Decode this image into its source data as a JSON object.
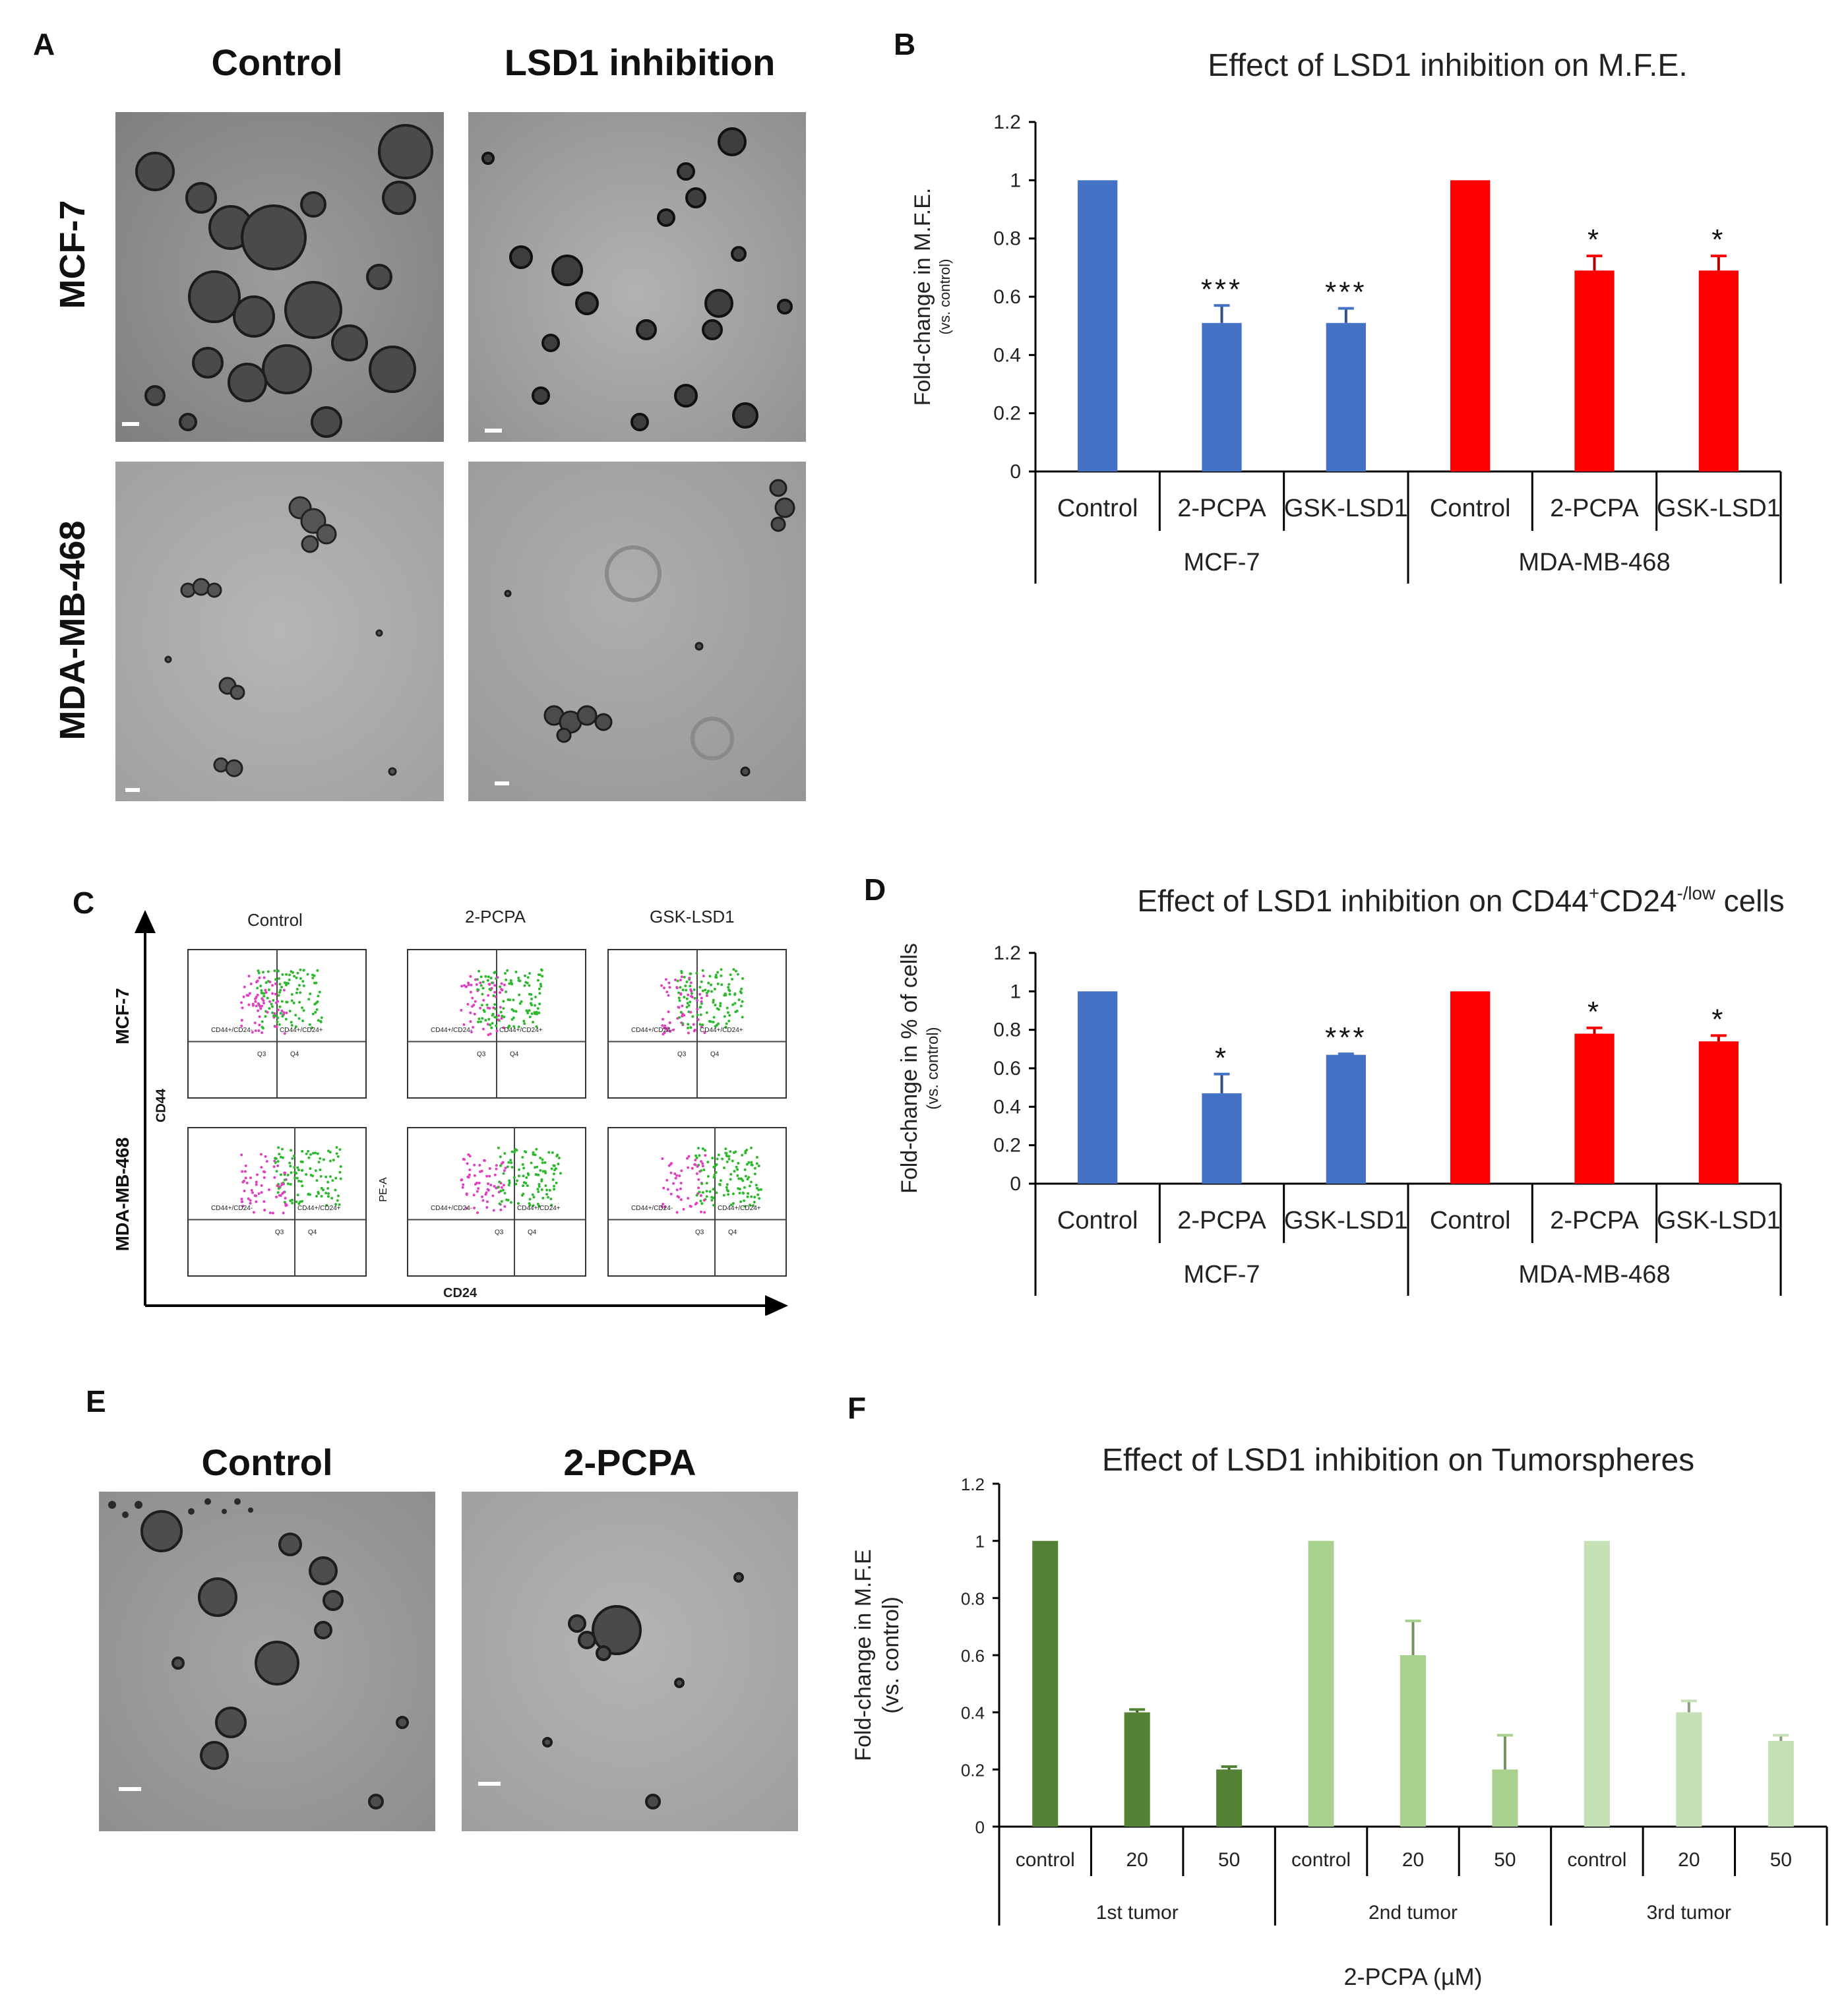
{
  "panelA": {
    "label": "A",
    "col_titles": [
      "Control",
      "LSD1 inhibition"
    ],
    "row_titles": [
      "MCF-7",
      "MDA-MB-468"
    ]
  },
  "panelC": {
    "label": "C",
    "col_titles": [
      "Control",
      "2-PCPA",
      "GSK-LSD1"
    ],
    "row_titles": [
      "MCF-7",
      "MDA-MB-468"
    ],
    "y_axis": "CD44",
    "x_axis": "CD24",
    "inner_ylabel": "PE-A",
    "gate_labels": {
      "q1": "CD44+/CD24-",
      "q2": "CD44+/CD24+",
      "q3": "Q3",
      "q4": "Q4"
    }
  },
  "panelE": {
    "label": "E",
    "col_titles": [
      "Control",
      "2-PCPA"
    ]
  },
  "colors": {
    "mcf7": "#4472C4",
    "mda": "#FF0000",
    "tumor1": "#548235",
    "tumor2": "#A9D18E",
    "tumor3": "#C5E0B4"
  },
  "chart_data": [
    {
      "id": "B",
      "label": "B",
      "type": "bar",
      "title": "Effect of LSD1 inhibition on M.F.E.",
      "ylabel": "Fold-change in M.F.E.",
      "ylabel_sub": "(vs. control)",
      "ylim": [
        0,
        1.2
      ],
      "yticks": [
        "0",
        "0.2",
        "0.4",
        "0.6",
        "0.8",
        "1",
        "1.2"
      ],
      "categories": [
        "Control",
        "2-PCPA",
        "GSK-LSD1",
        "Control",
        "2-PCPA",
        "GSK-LSD1"
      ],
      "groups": [
        "MCF-7",
        "MDA-MB-468"
      ],
      "values": [
        1.0,
        0.51,
        0.51,
        1.0,
        0.69,
        0.69
      ],
      "errors": [
        0,
        0.06,
        0.05,
        0,
        0.05,
        0.05
      ],
      "significance": [
        "",
        "***",
        "***",
        "",
        "*",
        "*"
      ]
    },
    {
      "id": "D",
      "label": "D",
      "type": "bar",
      "title": "Effect of LSD1 inhibition on CD44",
      "title_sup1": "+",
      "title_mid": "CD24",
      "title_sup2": "-/low",
      "title_end": " cells",
      "ylabel": "Fold-change in % of cells",
      "ylabel_sub": "(vs. control)",
      "ylim": [
        0,
        1.2
      ],
      "yticks": [
        "0",
        "0.2",
        "0.4",
        "0.6",
        "0.8",
        "1",
        "1.2"
      ],
      "categories": [
        "Control",
        "2-PCPA",
        "GSK-LSD1",
        "Control",
        "2-PCPA",
        "GSK-LSD1"
      ],
      "groups": [
        "MCF-7",
        "MDA-MB-468"
      ],
      "values": [
        1.0,
        0.47,
        0.67,
        1.0,
        0.78,
        0.74
      ],
      "errors": [
        0,
        0.1,
        0.005,
        0,
        0.03,
        0.03
      ],
      "significance": [
        "",
        "*",
        "***",
        "",
        "*",
        "*"
      ]
    },
    {
      "id": "F",
      "label": "F",
      "type": "bar",
      "title": "Effect of LSD1 inhibition on Tumorspheres",
      "ylabel": "Fold-change in M.F.E",
      "ylabel_sub": "(vs. control)",
      "xlabel": "2-PCPA (µM)",
      "ylim": [
        0,
        1.2
      ],
      "yticks": [
        "0",
        "0.2",
        "0.4",
        "0.6",
        "0.8",
        "1",
        "1.2"
      ],
      "categories": [
        "control",
        "20",
        "50",
        "control",
        "20",
        "50",
        "control",
        "20",
        "50"
      ],
      "groups": [
        "1st tumor",
        "2nd tumor",
        "3rd tumor"
      ],
      "values": [
        1.0,
        0.4,
        0.2,
        1.0,
        0.6,
        0.2,
        1.0,
        0.4,
        0.3
      ],
      "errors": [
        0,
        0.01,
        0.01,
        0,
        0.12,
        0.12,
        0,
        0.04,
        0.02
      ],
      "significance": [
        "",
        "",
        "",
        "",
        "",
        "",
        "",
        "",
        ""
      ]
    }
  ]
}
